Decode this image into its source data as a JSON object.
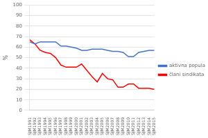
{
  "chart_data": {
    "type": "line",
    "y_label": "%",
    "categories": [
      "SJM1991",
      "SJM1992",
      "SJM1993",
      "SJM1994",
      "SJM1995",
      "SJM1996",
      "SJM1997",
      "SJM1998",
      "SJM1999",
      "SJM2000",
      "SJM2001",
      "SJM2002",
      "SJM2003",
      "SJM2004",
      "SJM2005",
      "SJM2006",
      "SJM2007",
      "SJM2008",
      "SJM2009",
      "SJM2010",
      "SJM2011",
      "SJM2012",
      "SJM2013",
      "SJM2014",
      "SJM2015"
    ],
    "series": [
      {
        "name": "aktivna populacija",
        "color": "#4472C4",
        "values": [
          65,
          63,
          65,
          65,
          65,
          65,
          61,
          61,
          60,
          59,
          57,
          57,
          58,
          58,
          58,
          57,
          56,
          56,
          55,
          51,
          51,
          55,
          56,
          57,
          57
        ]
      },
      {
        "name": "člani sindikata",
        "color": "#FF0000",
        "values": [
          67,
          63,
          57,
          55,
          54,
          50,
          43,
          41,
          41,
          41,
          44,
          38,
          32,
          27,
          35,
          30,
          29,
          22,
          22,
          25,
          25,
          21,
          21,
          21,
          20
        ]
      }
    ],
    "ylim": [
      0,
      100
    ],
    "yticks": [
      0,
      10,
      20,
      30,
      40,
      50,
      60,
      70,
      80,
      90,
      100
    ],
    "grid": true,
    "legend": "right"
  }
}
